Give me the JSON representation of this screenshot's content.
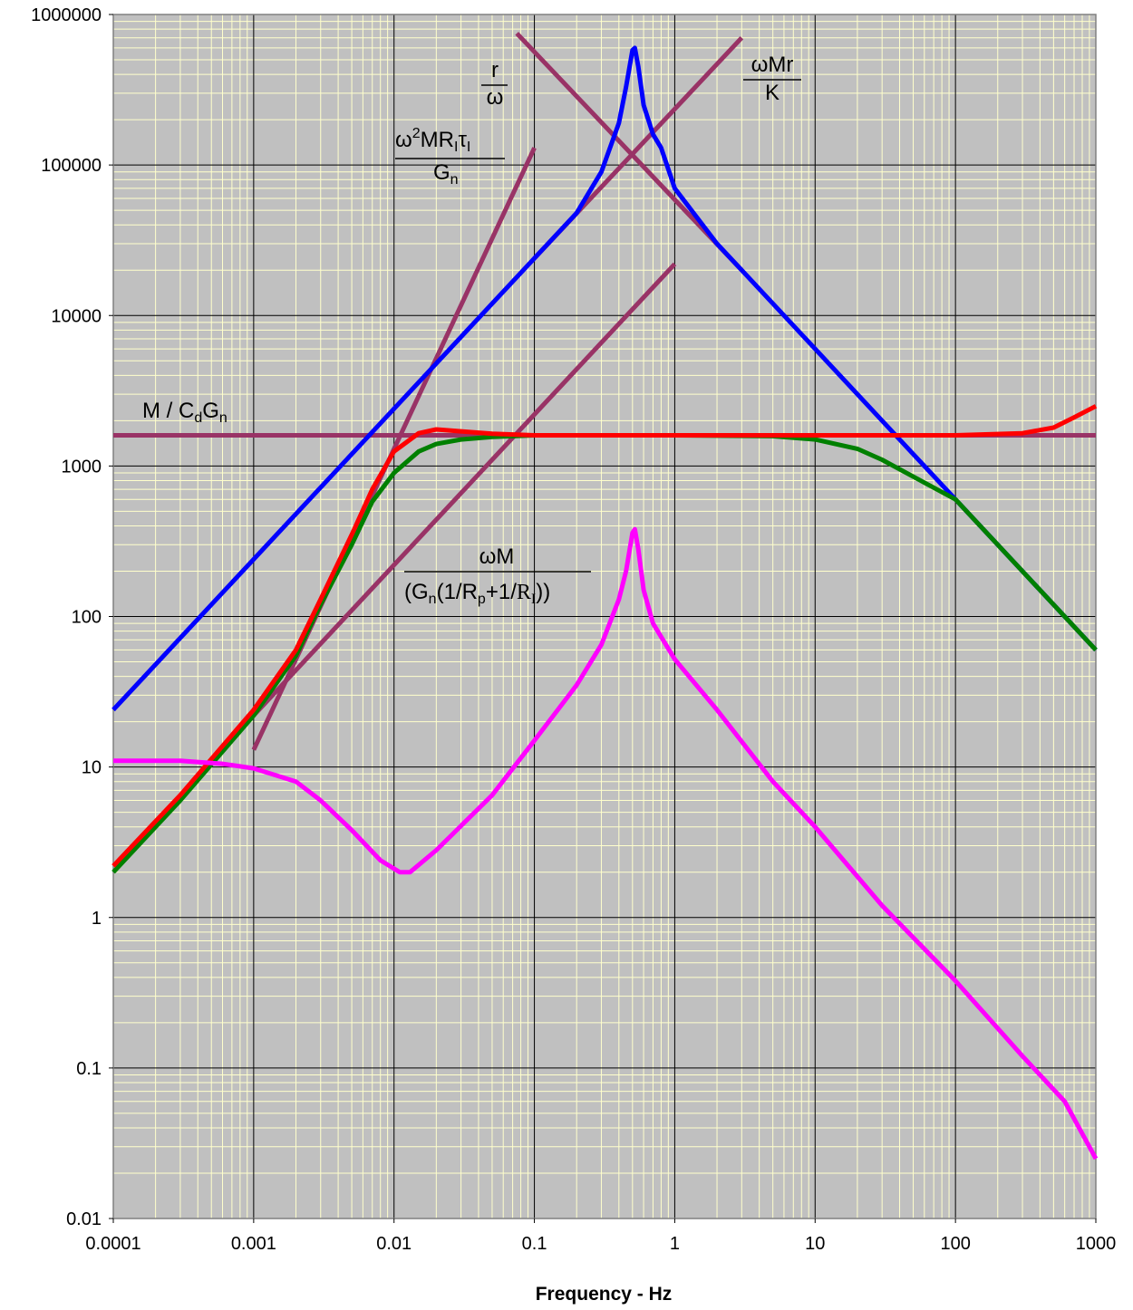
{
  "chart_data": {
    "type": "line",
    "title": "",
    "xlabel": "Frequency - Hz",
    "ylabel": "",
    "xscale": "log",
    "yscale": "log",
    "xlim": [
      0.0001,
      1000
    ],
    "ylim": [
      0.01,
      1000000
    ],
    "grid": true,
    "legend": "none",
    "x_ticks": [
      "0.0001",
      "0.001",
      "0.01",
      "0.1",
      "1",
      "10",
      "100",
      "1000"
    ],
    "y_ticks": [
      "0.01",
      "0.1",
      "1",
      "10",
      "100",
      "1000",
      "10000",
      "100000",
      "1000000"
    ],
    "colors": {
      "plot_background": "#c0c0c0",
      "major_grid": "#000000",
      "minor_grid": "#ffffcc",
      "blue": "#0000ff",
      "red": "#ff0000",
      "green": "#008000",
      "magenta": "#ff00ff",
      "asymptote": "#993366"
    },
    "series": [
      {
        "color": "#0000ff",
        "points": [
          [
            0.0001,
            24
          ],
          [
            0.001,
            240
          ],
          [
            0.01,
            2400
          ],
          [
            0.1,
            24000
          ],
          [
            0.2,
            48000
          ],
          [
            0.3,
            90000
          ],
          [
            0.4,
            190000
          ],
          [
            0.45,
            330000
          ],
          [
            0.5,
            580000
          ],
          [
            0.52,
            600000
          ],
          [
            0.55,
            450000
          ],
          [
            0.6,
            250000
          ],
          [
            0.7,
            160000
          ],
          [
            0.8,
            130000
          ],
          [
            1,
            70000
          ],
          [
            2,
            30000
          ],
          [
            3,
            20000
          ],
          [
            10,
            6000
          ],
          [
            100,
            600
          ],
          [
            1000,
            60
          ]
        ]
      },
      {
        "color": "#ff0000",
        "points": [
          [
            0.0001,
            2.2
          ],
          [
            0.0003,
            6.5
          ],
          [
            0.001,
            24
          ],
          [
            0.002,
            60
          ],
          [
            0.003,
            130
          ],
          [
            0.005,
            350
          ],
          [
            0.007,
            700
          ],
          [
            0.01,
            1250
          ],
          [
            0.015,
            1650
          ],
          [
            0.02,
            1750
          ],
          [
            0.03,
            1700
          ],
          [
            0.05,
            1640
          ],
          [
            0.1,
            1600
          ],
          [
            1,
            1600
          ],
          [
            10,
            1600
          ],
          [
            100,
            1600
          ],
          [
            300,
            1650
          ],
          [
            500,
            1800
          ],
          [
            700,
            2100
          ],
          [
            1000,
            2500
          ]
        ]
      },
      {
        "color": "#008000",
        "points": [
          [
            0.0001,
            2
          ],
          [
            0.0003,
            6
          ],
          [
            0.001,
            22
          ],
          [
            0.002,
            55
          ],
          [
            0.003,
            120
          ],
          [
            0.005,
            300
          ],
          [
            0.007,
            580
          ],
          [
            0.01,
            900
          ],
          [
            0.015,
            1250
          ],
          [
            0.02,
            1400
          ],
          [
            0.03,
            1500
          ],
          [
            0.05,
            1560
          ],
          [
            0.1,
            1600
          ],
          [
            1,
            1600
          ],
          [
            5,
            1580
          ],
          [
            10,
            1500
          ],
          [
            20,
            1300
          ],
          [
            30,
            1100
          ],
          [
            50,
            850
          ],
          [
            100,
            600
          ],
          [
            1000,
            60
          ]
        ]
      },
      {
        "color": "#ff00ff",
        "points": [
          [
            0.0001,
            11
          ],
          [
            0.0003,
            11
          ],
          [
            0.0006,
            10.5
          ],
          [
            0.001,
            9.8
          ],
          [
            0.002,
            8
          ],
          [
            0.003,
            6
          ],
          [
            0.005,
            3.8
          ],
          [
            0.008,
            2.4
          ],
          [
            0.011,
            2
          ],
          [
            0.013,
            2
          ],
          [
            0.02,
            2.8
          ],
          [
            0.05,
            6.5
          ],
          [
            0.1,
            15
          ],
          [
            0.2,
            35
          ],
          [
            0.3,
            65
          ],
          [
            0.4,
            130
          ],
          [
            0.45,
            200
          ],
          [
            0.5,
            360
          ],
          [
            0.52,
            380
          ],
          [
            0.55,
            280
          ],
          [
            0.6,
            150
          ],
          [
            0.7,
            90
          ],
          [
            1,
            52
          ],
          [
            2,
            24
          ],
          [
            5,
            8
          ],
          [
            10,
            4
          ],
          [
            30,
            1.2
          ],
          [
            100,
            0.38
          ],
          [
            300,
            0.12
          ],
          [
            600,
            0.06
          ],
          [
            1000,
            0.025
          ]
        ]
      },
      {
        "color": "#993366",
        "points": [
          [
            0.0001,
            1600
          ],
          [
            1000,
            1600
          ]
        ]
      },
      {
        "color": "#993366",
        "points": [
          [
            0.001,
            13
          ],
          [
            0.1,
            130000
          ]
        ]
      },
      {
        "color": "#993366",
        "points": [
          [
            0.075,
            750000
          ],
          [
            3,
            20000
          ]
        ]
      },
      {
        "color": "#993366",
        "points": [
          [
            0.1,
            24000
          ],
          [
            3,
            700000
          ]
        ]
      },
      {
        "color": "#993366",
        "points": [
          [
            0.001,
            22
          ],
          [
            1,
            22000
          ]
        ]
      }
    ],
    "annotations": {
      "r_over_omega": {
        "num": "r",
        "den": "ω"
      },
      "omega_mr_over_k": {
        "num": "ωMr",
        "den": "K"
      },
      "omega2_term": {
        "omega": "ω",
        "sup": "2",
        "mr": "MR",
        "sub_i": "I",
        "tau": "τ",
        "tau_sub": "I",
        "den_g": "G",
        "den_sub": "n"
      },
      "m_over_cdgn": {
        "m": "M / C",
        "sub_d": "d",
        "g": "G",
        "sub_n": "n"
      },
      "omega_m_term": {
        "num": "ωM",
        "den_a": "(G",
        "sub_n": "n",
        "den_b": "(1/R",
        "sub_p": "p",
        "den_c": "+1/",
        "den_r": "R",
        "sub_i": "I",
        "den_d": "))"
      }
    }
  }
}
